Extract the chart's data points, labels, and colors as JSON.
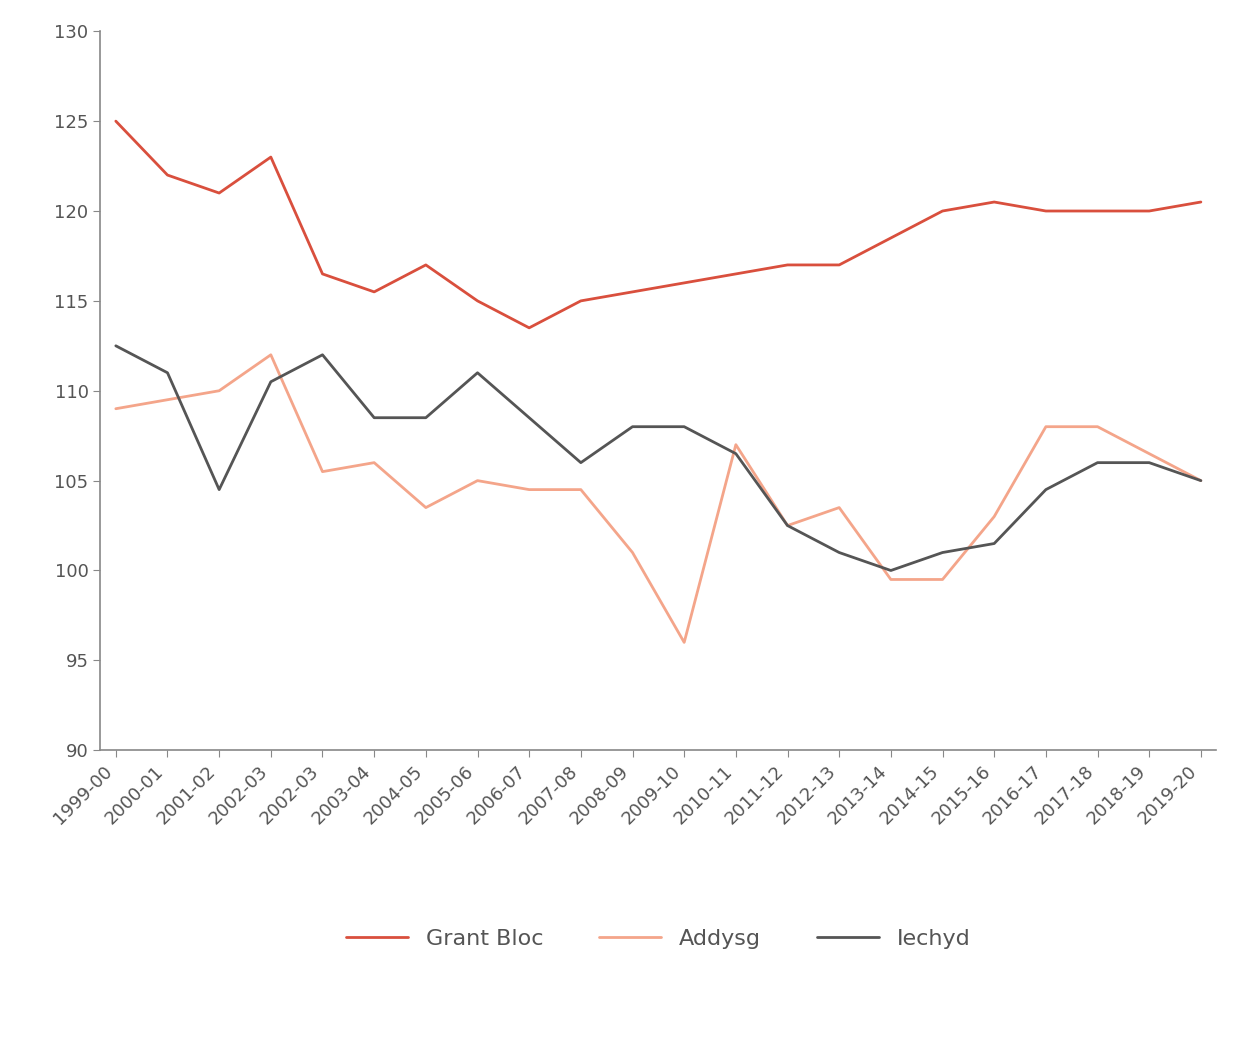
{
  "x_labels": [
    "1999-00",
    "2000-01",
    "2001-02",
    "2002-03",
    "2002-03",
    "2003-04",
    "2004-05",
    "2005-06",
    "2006-07",
    "2007-08",
    "2008-09",
    "2009-10",
    "2010-11",
    "2011-12",
    "2012-13",
    "2013-14",
    "2014-15",
    "2015-16",
    "2016-17",
    "2017-18",
    "2018-19",
    "2019-20"
  ],
  "grant_bloc_y": [
    125.0,
    122.0,
    121.0,
    123.0,
    116.5,
    115.5,
    117.0,
    115.0,
    113.5,
    115.0,
    115.5,
    116.0,
    116.5,
    117.0,
    117.0,
    118.5,
    120.0,
    120.5,
    120.0,
    120.0,
    120.0,
    120.5
  ],
  "addysg_y": [
    109.0,
    109.5,
    110.0,
    112.0,
    105.5,
    106.0,
    103.5,
    105.0,
    104.5,
    104.5,
    101.0,
    96.0,
    107.0,
    102.5,
    103.5,
    99.5,
    99.5,
    103.0,
    108.0,
    108.0,
    106.5,
    105.0
  ],
  "iechyd_y": [
    112.5,
    111.0,
    104.5,
    110.5,
    112.0,
    108.5,
    108.5,
    111.0,
    108.5,
    106.0,
    108.0,
    108.0,
    106.5,
    102.5,
    101.0,
    100.0,
    101.0,
    101.5,
    104.5,
    106.0,
    106.0,
    105.0
  ],
  "grant_bloc_color": "#d94f3d",
  "addysg_color": "#f4a58a",
  "iechyd_color": "#555555",
  "ylim_min": 90,
  "ylim_max": 130,
  "yticks": [
    90,
    95,
    100,
    105,
    110,
    115,
    120,
    125,
    130
  ],
  "background_color": "#ffffff",
  "legend_grant_bloc": "Grant Bloc",
  "legend_addysg": "Addysg",
  "legend_iechyd": "Iechyd",
  "linewidth": 2.0,
  "tick_label_color": "#555555",
  "spine_color": "#888888",
  "axis_label_fontsize": 13,
  "legend_fontsize": 16
}
